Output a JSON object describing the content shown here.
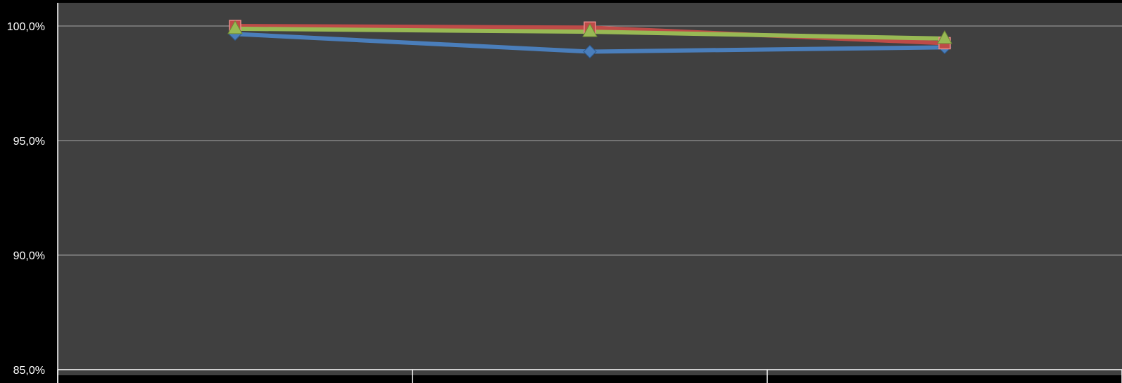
{
  "chart_data": {
    "type": "line",
    "categories": [
      "",
      "",
      ""
    ],
    "ylim": [
      0.85,
      1.0
    ],
    "y_tick_values": [
      1.0,
      0.95,
      0.9,
      0.85
    ],
    "y_tick_labels": [
      "100,0%",
      "95,0%",
      "90,0%",
      "85,0%"
    ],
    "grid": true,
    "legend": "none",
    "series": [
      {
        "values": [
          0.9965,
          0.9888,
          0.9907
        ],
        "color": "#4A7EBB",
        "marker": "diamond"
      },
      {
        "values": [
          1.0,
          0.9993,
          0.9925
        ],
        "color": "#BE4B48",
        "marker": "square"
      },
      {
        "values": [
          0.9988,
          0.9975,
          0.9945
        ],
        "color": "#98B954",
        "marker": "triangle"
      }
    ],
    "plot_background": "#404040",
    "page_background": "#000000",
    "grid_color": "#A6A6A6",
    "axis_color": "#FFFFFF"
  }
}
